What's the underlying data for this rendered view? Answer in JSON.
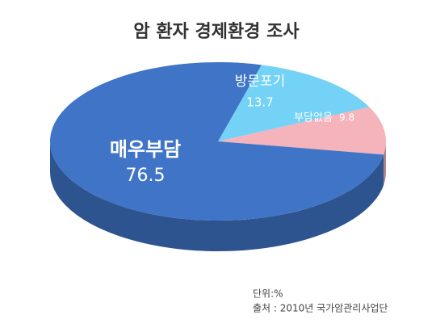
{
  "chart_data": {
    "type": "pie",
    "title": "암 환자 경제환경 조사",
    "categories": [
      "매우부담",
      "방문포기",
      "부담없음"
    ],
    "values": [
      76.5,
      13.7,
      9.8
    ],
    "colors": [
      "#3f74c6",
      "#74d2f6",
      "#f5b3bb"
    ],
    "notes": [
      "단위:%",
      "출처 : 2010년 국가암관리사업단"
    ]
  }
}
